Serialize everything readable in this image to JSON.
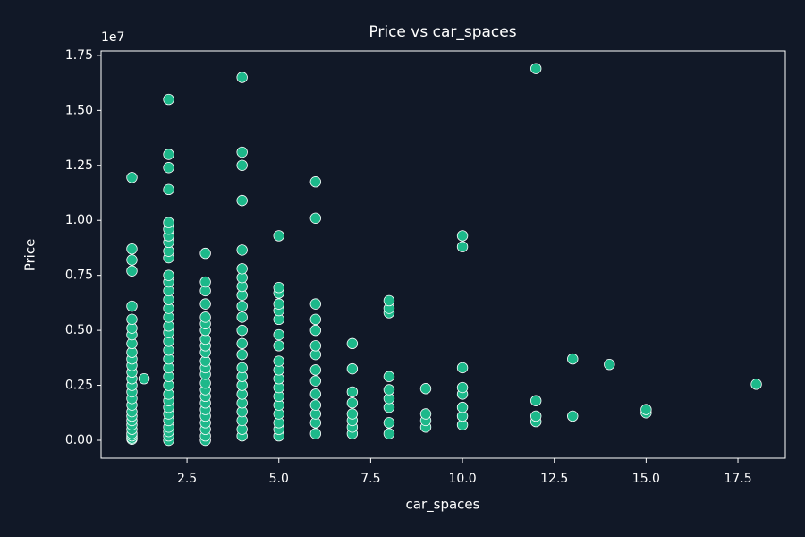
{
  "chart_data": {
    "type": "scatter",
    "title": "Price vs car_spaces",
    "xlabel": "car_spaces",
    "ylabel": "Price",
    "y_offset_text": "1e7",
    "color": "#1db88a",
    "edgecolor": "#ffffff",
    "background": "#111827",
    "xlim": [
      0.16,
      18.79
    ],
    "ylim": [
      -814000,
      17700000
    ],
    "xticks": [
      2.5,
      {
        "value": 5,
        "label": "5.0"
      },
      7.5,
      {
        "value": 10,
        "label": "10.0"
      },
      12.5,
      {
        "value": 15,
        "label": "15.0"
      },
      17.5
    ],
    "yticks": [
      {
        "value": 0,
        "label": "0.00"
      },
      {
        "value": 2500000,
        "label": "0.25"
      },
      {
        "value": 5000000,
        "label": "0.50"
      },
      {
        "value": 7500000,
        "label": "0.75"
      },
      {
        "value": 10000000,
        "label": "1.00"
      },
      {
        "value": 12500000,
        "label": "1.25"
      },
      {
        "value": 15000000,
        "label": "1.50"
      },
      {
        "value": 17500000,
        "label": "1.75"
      }
    ],
    "x": [
      1,
      1,
      1,
      1,
      1,
      1,
      1,
      1,
      1,
      1,
      1,
      1,
      1,
      1,
      1,
      1,
      1,
      1,
      1,
      1,
      1,
      1,
      1,
      1,
      1,
      1,
      1,
      1.33,
      2,
      2,
      2,
      2,
      2,
      2,
      2,
      2,
      2,
      2,
      2,
      2,
      2,
      2,
      2,
      2,
      2,
      2,
      2,
      2,
      2,
      2,
      2,
      2,
      2,
      2,
      2,
      2,
      2,
      2,
      2,
      2,
      2,
      3,
      3,
      3,
      3,
      3,
      3,
      3,
      3,
      3,
      3,
      3,
      3,
      3,
      3,
      3,
      3,
      3,
      3,
      3,
      3,
      3,
      3,
      3,
      4,
      4,
      4,
      4,
      4,
      4,
      4,
      4,
      4,
      4,
      4,
      4,
      4,
      4,
      4,
      4,
      4,
      4,
      4,
      4,
      4,
      4,
      4,
      5,
      5,
      5,
      5,
      5,
      5,
      5,
      5,
      5,
      5,
      5,
      5,
      5,
      5,
      5,
      5,
      5,
      5,
      6,
      6,
      6,
      6,
      6,
      6,
      6,
      6,
      6,
      6,
      6,
      6,
      6,
      6,
      7,
      7,
      7,
      7,
      7,
      7,
      7,
      7,
      8,
      8,
      8,
      8,
      8,
      8,
      8,
      8,
      8,
      9,
      9,
      9,
      9,
      10,
      10,
      10,
      10,
      10,
      10,
      10,
      10,
      12,
      12,
      12,
      12,
      13,
      13,
      14,
      15,
      15,
      18
    ],
    "y": [
      50000,
      100000,
      200000,
      300000,
      500000,
      700000,
      900000,
      1100000,
      1300000,
      1600000,
      1900000,
      2200000,
      2500000,
      2800000,
      3100000,
      3400000,
      3700000,
      4000000,
      4400000,
      4800000,
      5100000,
      5500000,
      6100000,
      7700000,
      8200000,
      8700000,
      11950000,
      2800000,
      0,
      200000,
      400000,
      600000,
      900000,
      1200000,
      1500000,
      1800000,
      2100000,
      2500000,
      2900000,
      3300000,
      3700000,
      4100000,
      4500000,
      4900000,
      5200000,
      5600000,
      6000000,
      6400000,
      6800000,
      7200000,
      7500000,
      8300000,
      8600000,
      9000000,
      9300000,
      9600000,
      9900000,
      11400000,
      12400000,
      13000000,
      15500000,
      0,
      200000,
      500000,
      800000,
      1100000,
      1400000,
      1700000,
      2000000,
      2300000,
      2600000,
      3000000,
      3300000,
      3600000,
      4000000,
      4300000,
      4600000,
      5000000,
      5300000,
      5600000,
      6200000,
      6800000,
      7200000,
      8500000,
      200000,
      500000,
      900000,
      1300000,
      1700000,
      2100000,
      2500000,
      2900000,
      3300000,
      3900000,
      4400000,
      5000000,
      5600000,
      6100000,
      6600000,
      7000000,
      7400000,
      7800000,
      8650000,
      10900000,
      12500000,
      13100000,
      16500000,
      200000,
      500000,
      800000,
      1200000,
      1600000,
      2000000,
      2400000,
      2800000,
      3200000,
      3600000,
      4300000,
      4800000,
      5500000,
      5900000,
      6200000,
      6700000,
      6950000,
      9300000,
      300000,
      800000,
      1200000,
      1600000,
      2100000,
      2700000,
      3200000,
      3900000,
      4300000,
      5000000,
      5500000,
      6200000,
      10100000,
      11750000,
      300000,
      600000,
      900000,
      1200000,
      1700000,
      2200000,
      3250000,
      4400000,
      300000,
      800000,
      1500000,
      1900000,
      2300000,
      2900000,
      5800000,
      6000000,
      6350000,
      600000,
      900000,
      1200000,
      2350000,
      700000,
      1100000,
      1500000,
      2100000,
      2400000,
      3300000,
      8800000,
      9300000,
      850000,
      1100000,
      1800000,
      16900000,
      1100000,
      3700000,
      3450000,
      1250000,
      1400000,
      2550000
    ]
  }
}
